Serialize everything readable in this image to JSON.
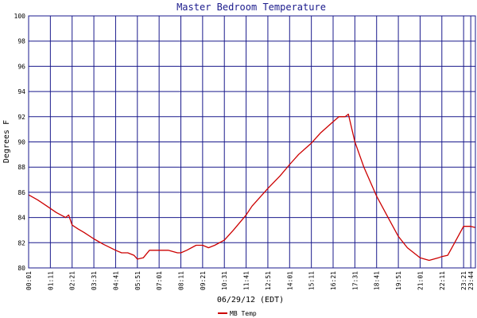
{
  "chart_data": {
    "type": "line",
    "title": "Master Bedroom Temperature",
    "xlabel": "06/29/12 (EDT)",
    "ylabel": "Degrees F",
    "ylim": [
      80,
      100
    ],
    "yticks": [
      80,
      82,
      84,
      86,
      88,
      90,
      92,
      94,
      96,
      98,
      100
    ],
    "x_tick_labels": [
      "00:01",
      "01:11",
      "02:21",
      "03:31",
      "04:41",
      "05:51",
      "07:01",
      "08:11",
      "09:21",
      "10:31",
      "11:41",
      "12:51",
      "14:01",
      "15:11",
      "16:21",
      "17:31",
      "18:41",
      "19:51",
      "21:01",
      "22:11",
      "23:21",
      "23:44"
    ],
    "x_range": [
      "00:01",
      "23:59"
    ],
    "grid": true,
    "legend_position": "bottom-left",
    "colors": {
      "frame": "#1a1a8c",
      "grid": "#1a1a8c",
      "series": "#cc0000",
      "title": "#1a1a8c"
    },
    "series": [
      {
        "name": "MB Temp",
        "x": [
          "00:01",
          "00:30",
          "01:00",
          "01:30",
          "02:00",
          "02:10",
          "02:21",
          "02:40",
          "03:00",
          "03:31",
          "04:00",
          "04:41",
          "05:00",
          "05:20",
          "05:40",
          "05:51",
          "06:10",
          "06:30",
          "06:45",
          "07:01",
          "07:30",
          "08:00",
          "08:11",
          "08:30",
          "09:00",
          "09:21",
          "09:40",
          "10:00",
          "10:31",
          "11:00",
          "11:41",
          "12:00",
          "12:51",
          "13:30",
          "14:01",
          "14:30",
          "15:11",
          "15:40",
          "16:21",
          "16:40",
          "17:00",
          "17:10",
          "17:31",
          "18:00",
          "18:41",
          "19:20",
          "19:51",
          "20:20",
          "21:01",
          "21:30",
          "22:00",
          "22:11",
          "22:30",
          "22:50",
          "23:21",
          "23:44",
          "23:59"
        ],
        "y": [
          85.8,
          85.4,
          84.9,
          84.4,
          84.0,
          84.2,
          83.4,
          83.1,
          82.8,
          82.3,
          81.9,
          81.4,
          81.2,
          81.2,
          81.0,
          80.7,
          80.8,
          81.4,
          81.4,
          81.4,
          81.4,
          81.2,
          81.2,
          81.4,
          81.8,
          81.8,
          81.6,
          81.8,
          82.2,
          83.0,
          84.2,
          84.9,
          86.3,
          87.3,
          88.2,
          89.0,
          89.9,
          90.7,
          91.6,
          92.0,
          92.0,
          92.2,
          90.0,
          88.0,
          85.7,
          83.9,
          82.5,
          81.6,
          80.8,
          80.6,
          80.8,
          80.9,
          81.0,
          81.9,
          83.3,
          83.3,
          83.2
        ]
      }
    ]
  }
}
